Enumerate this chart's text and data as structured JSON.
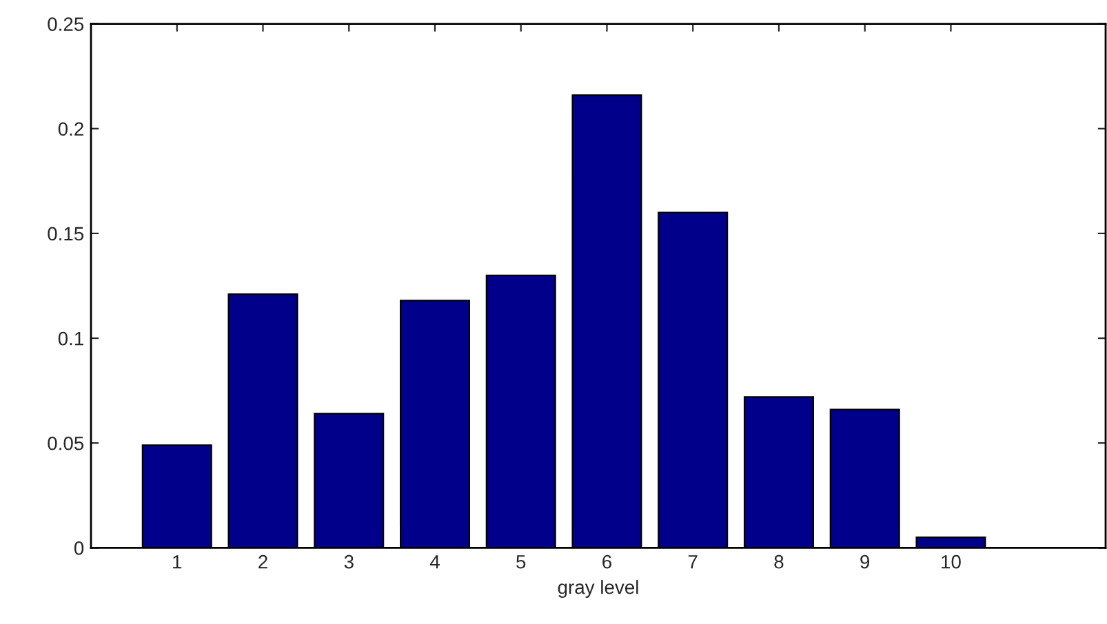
{
  "chart_data": {
    "type": "bar",
    "xlabel": "gray level",
    "x": [
      1,
      2,
      3,
      4,
      5,
      6,
      7,
      8,
      9,
      10
    ],
    "values": [
      0.049,
      0.121,
      0.064,
      0.118,
      0.13,
      0.216,
      0.16,
      0.072,
      0.066,
      0.005
    ],
    "color": "#00008b",
    "xlim": [
      0,
      11.8
    ],
    "xticks": [
      1,
      2,
      3,
      4,
      5,
      6,
      7,
      8,
      9,
      10
    ],
    "ylim": [
      0,
      0.25
    ],
    "yticks": [
      0,
      0.05,
      0.1,
      0.15,
      0.2,
      0.25
    ],
    "grid": false,
    "legend": false
  }
}
